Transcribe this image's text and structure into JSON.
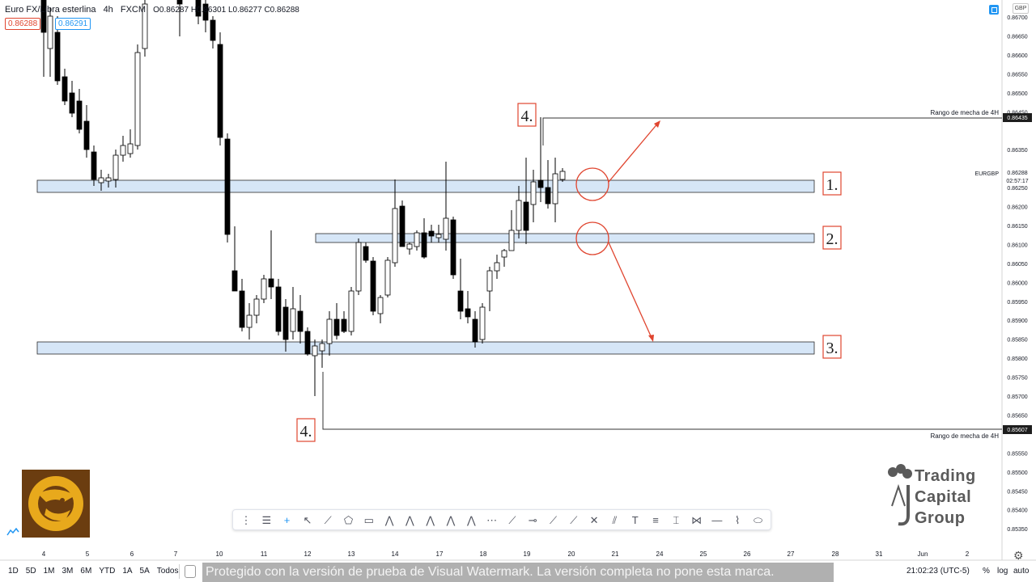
{
  "header": {
    "symbol": "Euro FX/Libra esterlina",
    "interval": "4h",
    "source": "FXCM",
    "ohlc": "O0.86287 H0.86301 L0.86277 C0.86288",
    "sell_price": "0.86288",
    "buy_price": "0.86291",
    "currency": "GBP"
  },
  "price_axis": {
    "labels": [
      "0.86700",
      "0.86650",
      "0.86600",
      "0.86550",
      "0.86500",
      "0.86450",
      "0.86350",
      "0.86250",
      "0.86200",
      "0.86150",
      "0.86100",
      "0.86050",
      "0.86000",
      "0.85950",
      "0.85900",
      "0.85850",
      "0.85800",
      "0.85750",
      "0.85700",
      "0.85650",
      "0.85550",
      "0.85500",
      "0.85450",
      "0.85400",
      "0.85350"
    ],
    "current_price": "0.86288",
    "countdown": "02:57:17",
    "symbol_tag": "EURGBP",
    "upper_wick_price": "0.86435",
    "lower_wick_price": "0.85607"
  },
  "time_axis": {
    "labels": [
      "4",
      "5",
      "6",
      "7",
      "10",
      "11",
      "12",
      "13",
      "14",
      "17",
      "18",
      "19",
      "20",
      "21",
      "24",
      "25",
      "26",
      "27",
      "28",
      "31",
      "Jun",
      "2"
    ]
  },
  "annotations": {
    "zone_labels": [
      "1.",
      "2.",
      "3."
    ],
    "wick_badge": "4.",
    "range_label": "Rango de mecha de 4H"
  },
  "chart_data": {
    "type": "candlestick",
    "title": "Euro FX/Libra esterlina",
    "ylim": [
      0.853,
      0.8675
    ],
    "levels": {
      "zone_1": [
        0.8624,
        0.8627
      ],
      "zone_2": [
        0.8611,
        0.8613
      ],
      "zone_3": [
        0.8581,
        0.8584
      ],
      "upper_wick_range": 0.86435,
      "lower_wick_range": 0.85607
    },
    "colors": {
      "up": "#ffffff",
      "down": "#000000",
      "zone_fill": "#d6e6f7",
      "arrow": "#e0452f"
    }
  },
  "timeframes": [
    "1D",
    "5D",
    "1M",
    "3M",
    "6M",
    "YTD",
    "1A",
    "5A",
    "Todos"
  ],
  "watermark_text": "Protegido con la versión de prueba de Visual Watermark. La versión completa no pone esta marca.",
  "footer": {
    "time": "21:02:23 (UTC-5)",
    "percent": "%",
    "log": "log",
    "auto": "auto"
  },
  "brand": {
    "line1": "Trading",
    "line2": "Capital",
    "line3": "Group"
  },
  "toolbar_icons": [
    "drag-handle-icon",
    "horizontal-lines-icon",
    "crosshair-icon",
    "cursor-icon",
    "trend-line-icon",
    "polygon-icon",
    "rectangle-icon",
    "xabcd-pattern-icon",
    "abcd-pattern-icon",
    "wxyz-pattern-icon",
    "abc-pattern-icon",
    "wy-pattern-icon",
    "pattern-nodes-icon",
    "line-icon",
    "horizontal-ray-icon",
    "ray-icon",
    "extended-line-icon",
    "cross-lines-icon",
    "parallel-channel-icon",
    "text-icon",
    "levels-icon",
    "price-range-icon",
    "head-shoulders-icon",
    "horizontal-line-icon",
    "wave-icon",
    "ellipse-icon"
  ]
}
